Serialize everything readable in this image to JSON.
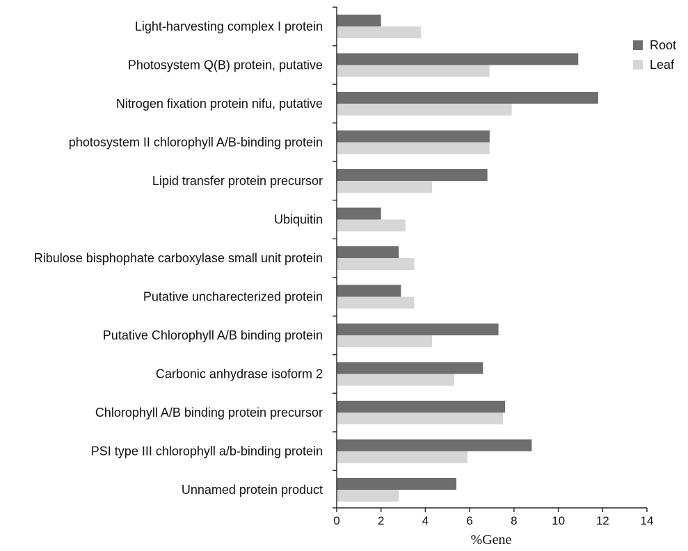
{
  "chart_data": {
    "type": "bar",
    "orientation": "horizontal",
    "categories": [
      "Light-harvesting complex I protein",
      "Photosystem Q(B) protein, putative",
      "Nitrogen fixation protein nifu, putative",
      "photosystem II chlorophyll A/B-binding protein",
      "Lipid transfer protein precursor",
      "Ubiquitin",
      "Ribulose bisphophate carboxylase small unit protein",
      "Putative uncharecterized protein",
      "Putative Chlorophyll A/B binding protein",
      "Carbonic anhydrase isoform 2",
      "Chlorophyll A/B binding protein precursor",
      "PSI type III chlorophyll a/b-binding protein",
      "Unnamed protein product"
    ],
    "series": [
      {
        "name": "Root",
        "color": "#6e6e6e",
        "values": [
          2.0,
          10.9,
          11.8,
          6.9,
          6.8,
          2.0,
          2.8,
          2.9,
          7.3,
          6.6,
          7.6,
          8.8,
          5.4
        ]
      },
      {
        "name": "Leaf",
        "color": "#d6d6d6",
        "values": [
          3.8,
          6.9,
          7.9,
          6.9,
          4.3,
          3.1,
          3.5,
          3.5,
          4.3,
          5.3,
          7.5,
          5.9,
          2.8
        ]
      }
    ],
    "xlabel": "%Gene",
    "ylabel": "",
    "title": "",
    "xlim": [
      0,
      14
    ],
    "xticks": [
      "0",
      "2",
      "4",
      "6",
      "8",
      "10",
      "12",
      "14"
    ],
    "grid": false,
    "legend_position": "top-right"
  }
}
